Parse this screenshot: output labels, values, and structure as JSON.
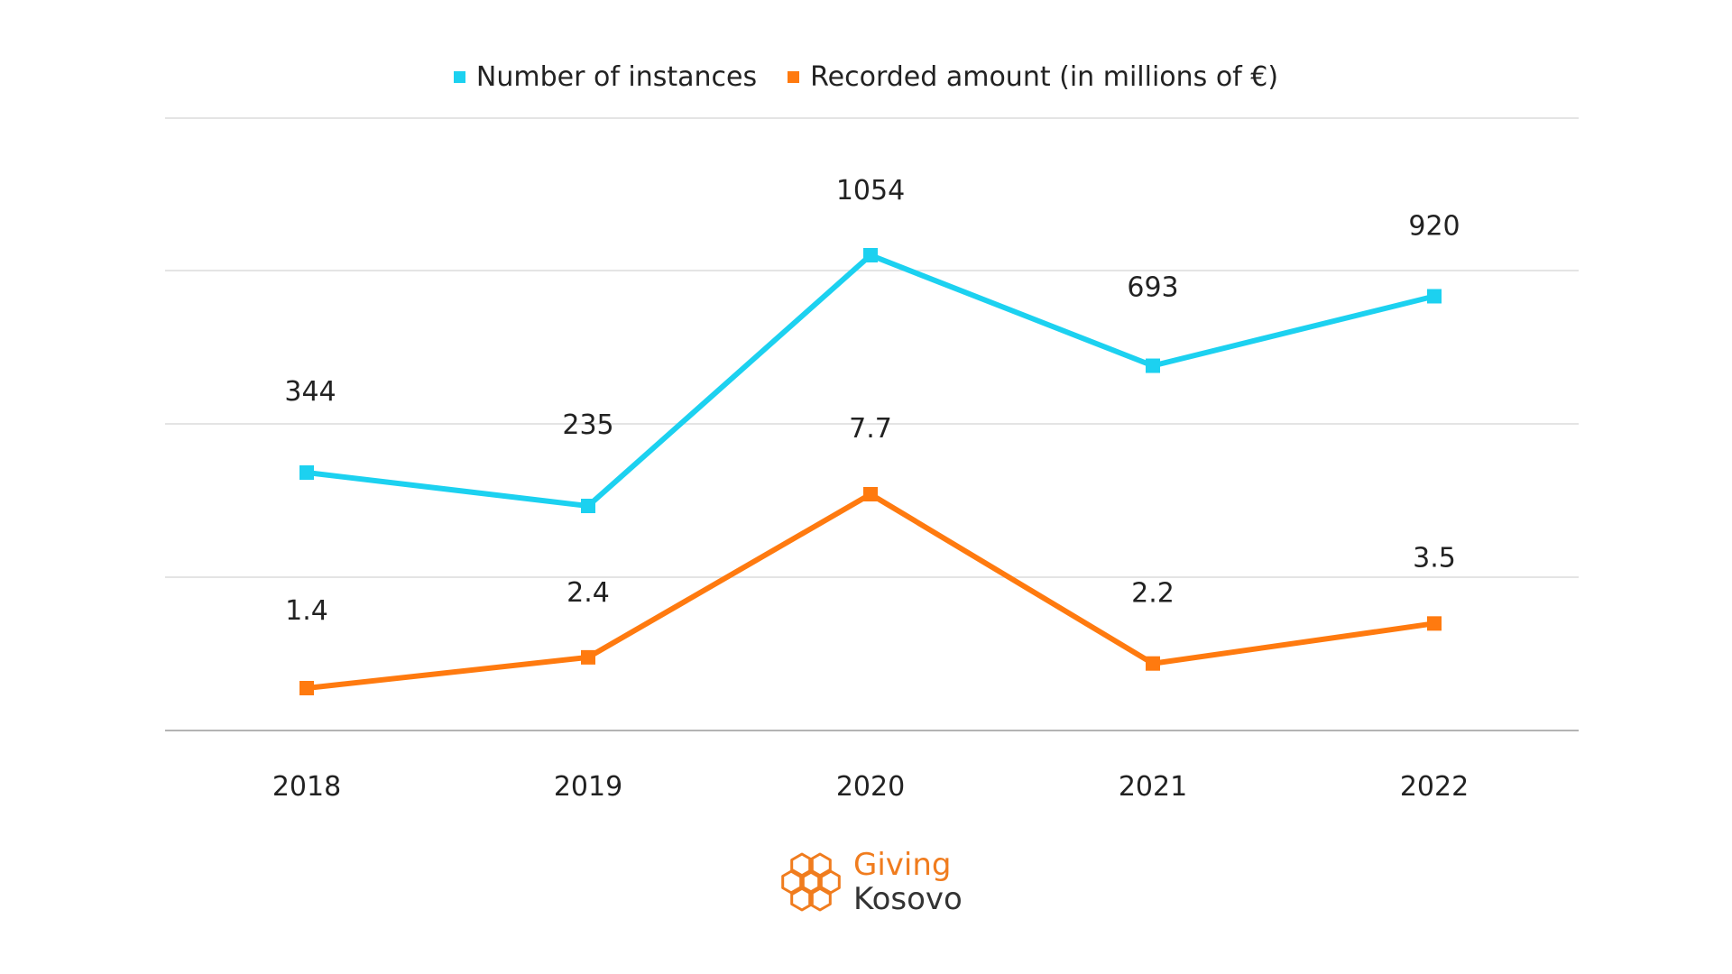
{
  "chart_data": {
    "type": "line",
    "categories": [
      "2018",
      "2019",
      "2020",
      "2021",
      "2022"
    ],
    "series": [
      {
        "name": "Number of instances",
        "color": "#1CD1F0",
        "values": [
          344,
          235,
          1054,
          693,
          920
        ],
        "labels": [
          "344",
          "235",
          "1054",
          "693",
          "920"
        ]
      },
      {
        "name": "Recorded amount (in millions of €)",
        "color": "#FF7A0F",
        "values": [
          1.4,
          2.4,
          7.7,
          2.2,
          3.5
        ],
        "labels": [
          "1.4",
          "2.4",
          "7.7",
          "2.2",
          "3.5"
        ]
      }
    ],
    "grid": true,
    "legend_position": "top-center",
    "y_axis_visible": false
  },
  "logo": {
    "line1": "Giving",
    "line2": "Kosovo",
    "color_line1": "#F07C1E",
    "color_line2": "#333333",
    "icon": "hexagon-cluster-icon",
    "icon_color": "#F07C1E"
  }
}
